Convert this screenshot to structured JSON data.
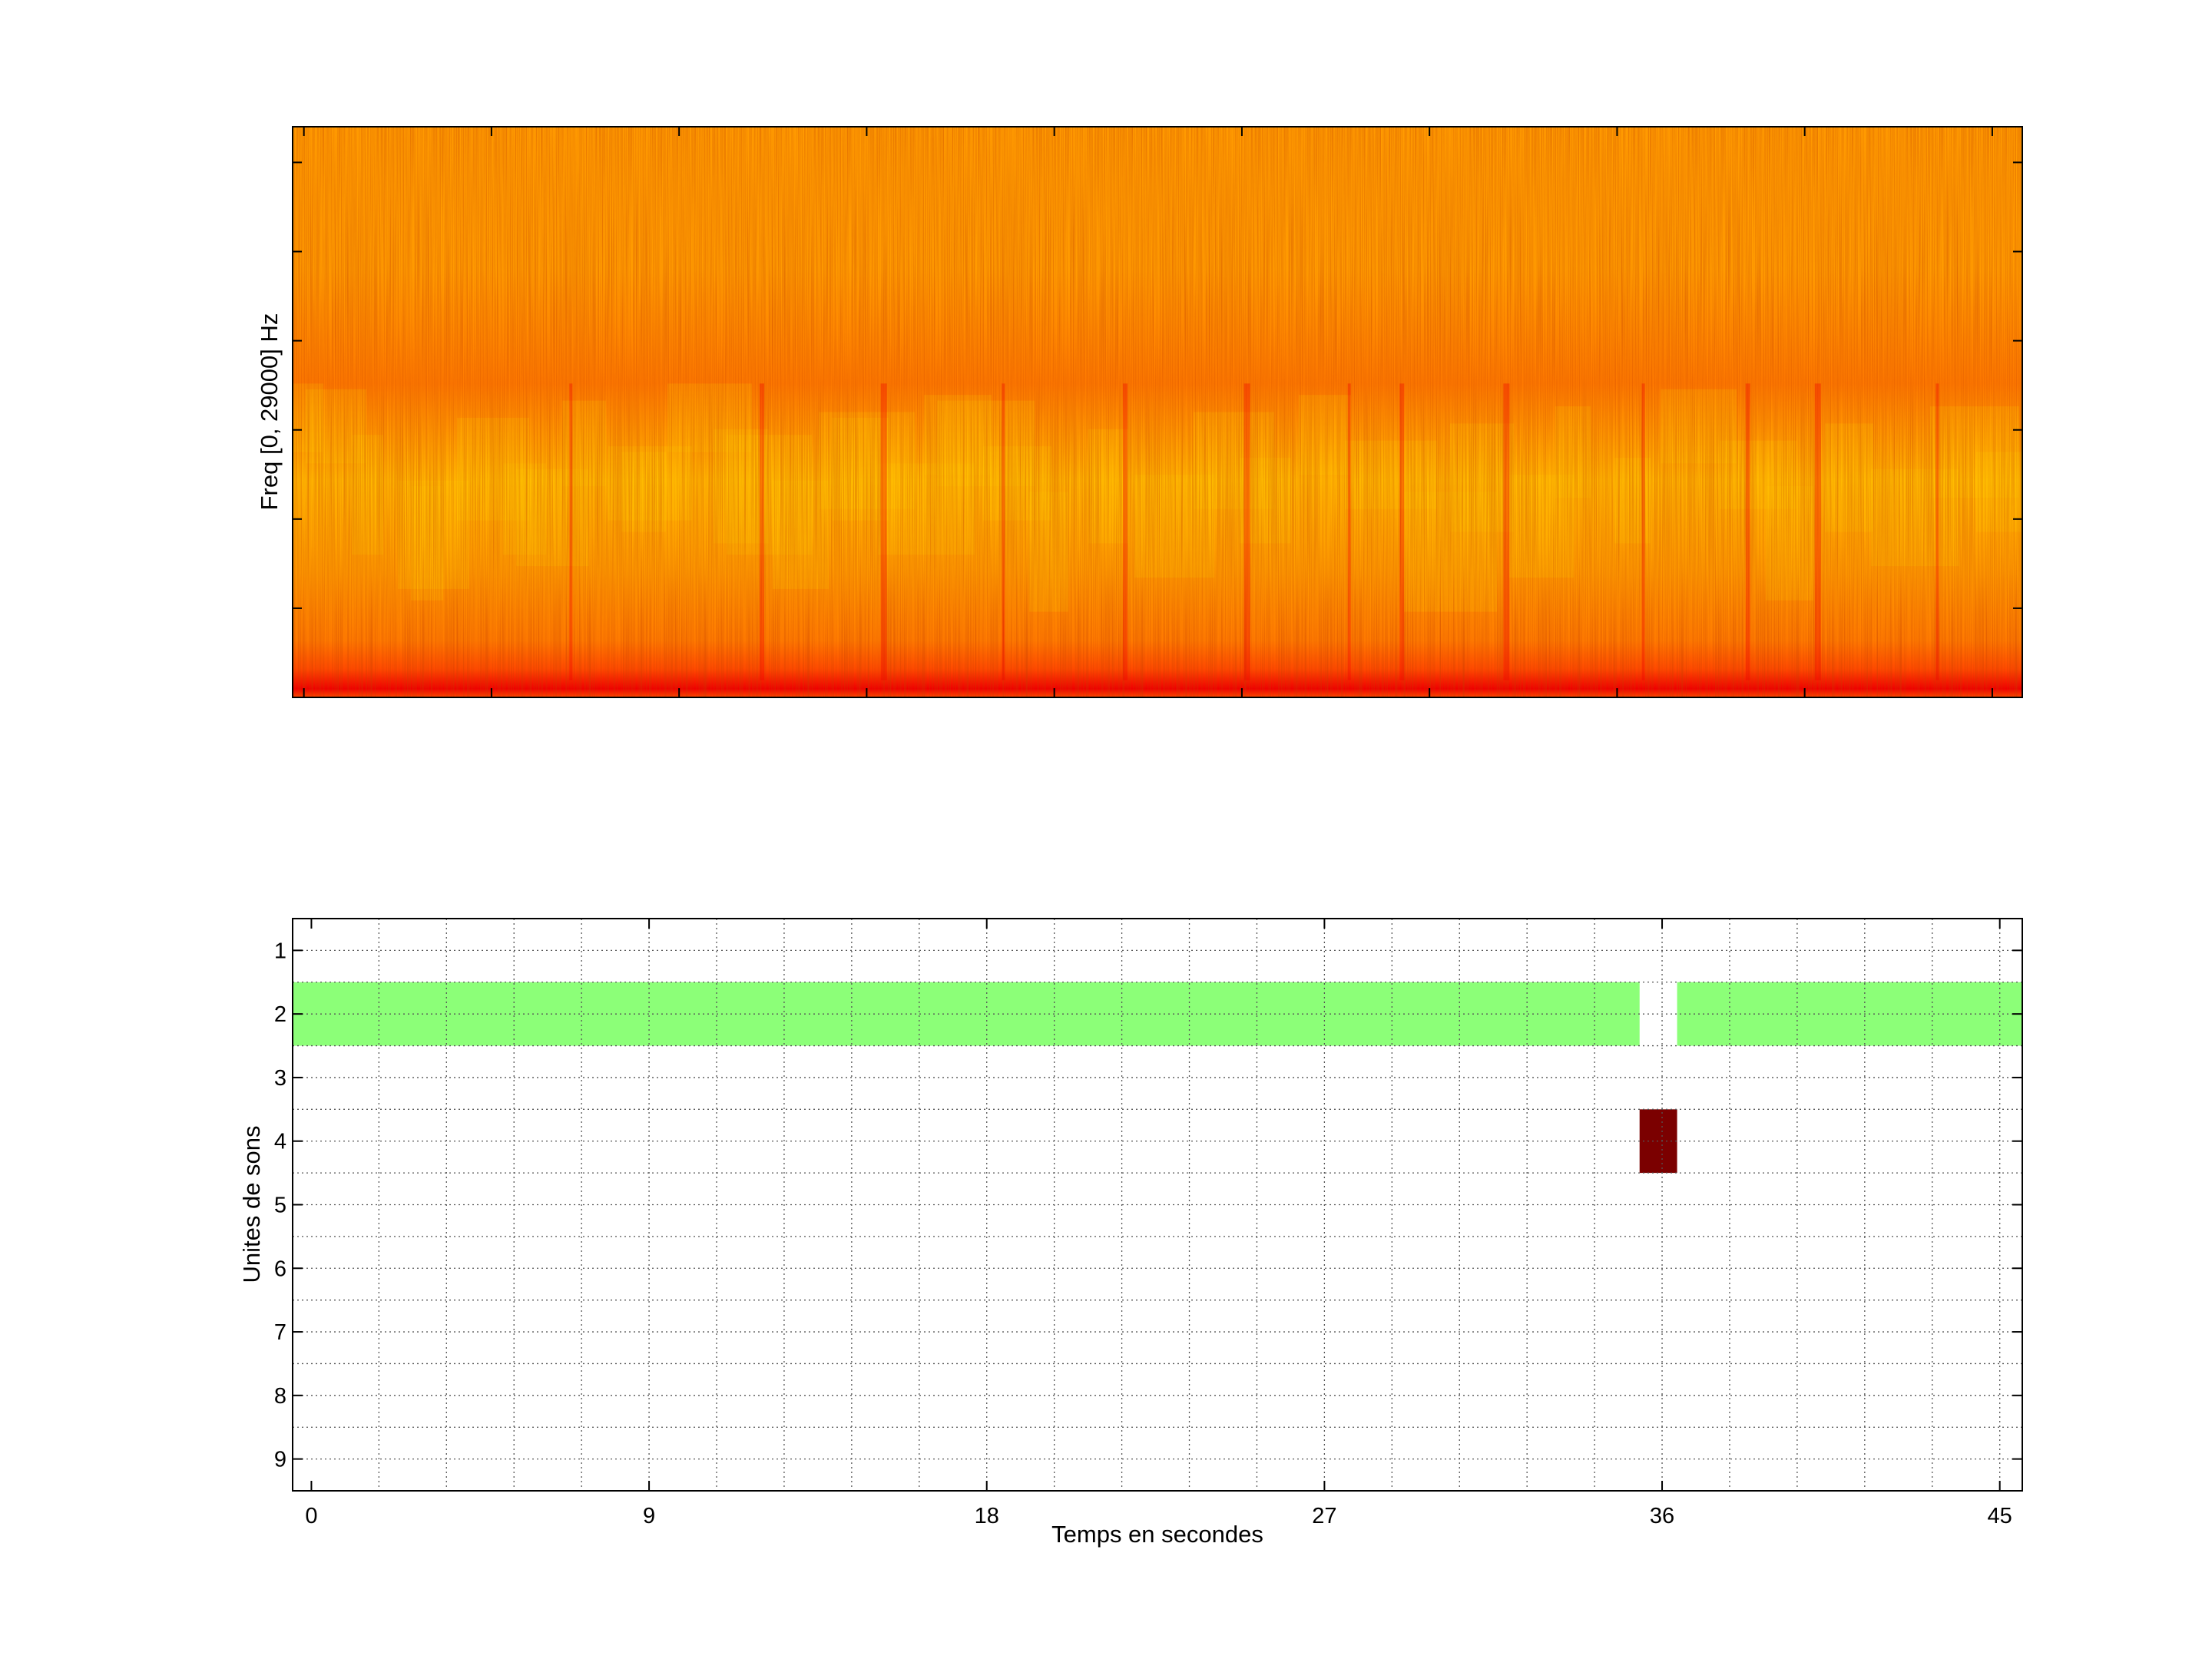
{
  "chart_data": [
    {
      "type": "heatmap",
      "name": "spectrogram",
      "title": "",
      "xlabel": "",
      "ylabel": "Freq [0, 29000] Hz",
      "ylim_hz": [
        0,
        29000
      ],
      "xlim": [
        -0.3,
        45.8
      ],
      "colormap": [
        "#f00000",
        "#ff4a00",
        "#ff7a00",
        "#ff9a00",
        "#ffb300",
        "#ffc800"
      ],
      "notes_visible": "energy strongest near 0 Hz (red band), broadband orange/yellow elsewhere"
    },
    {
      "type": "heatmap",
      "name": "sound-units",
      "title": "",
      "xlabel": "Temps en secondes",
      "ylabel": "Unites de sons",
      "xticks": [
        0,
        9,
        18,
        27,
        36,
        45
      ],
      "xtick_labels": [
        "0",
        "9",
        "18",
        "27",
        "36",
        "45"
      ],
      "yticks": [
        1,
        2,
        3,
        4,
        5,
        6,
        7,
        8,
        9
      ],
      "ytick_labels": [
        "1",
        "2",
        "3",
        "4",
        "5",
        "6",
        "7",
        "8",
        "9"
      ],
      "xlim": [
        -0.5,
        45.6
      ],
      "ylim": [
        0.5,
        9.5
      ],
      "x_minor_step": 1.8,
      "grid": true,
      "cells": [
        {
          "unit": 2,
          "x_start": -0.5,
          "x_end": 35.4,
          "color": "#8cff78"
        },
        {
          "unit": 2,
          "x_start": 36.4,
          "x_end": 45.6,
          "color": "#8cff78"
        },
        {
          "unit": 4,
          "x_start": 35.4,
          "x_end": 36.4,
          "color": "#7b0000"
        }
      ]
    }
  ]
}
